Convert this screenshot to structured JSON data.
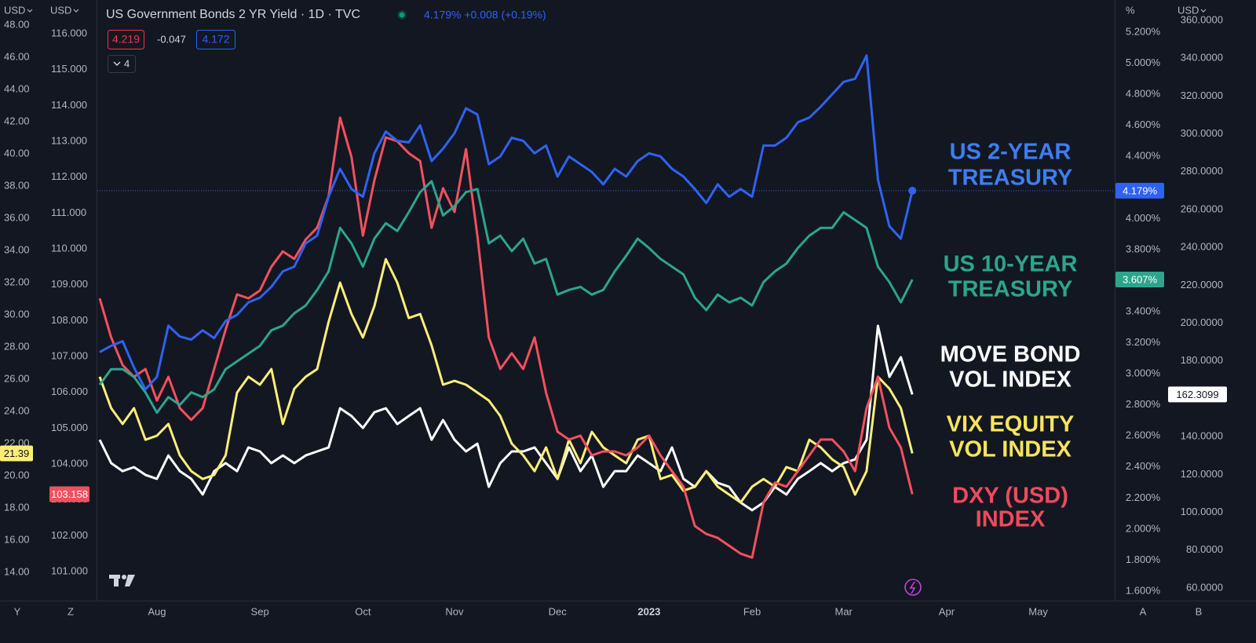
{
  "header": {
    "title": "US Government Bonds 2 YR Yield · 1D · TVC",
    "quote": "4.179% +0.008 (+0.19%)",
    "ohlc": [
      "4.219",
      "-0.047",
      "4.172"
    ],
    "indicator_count": "4"
  },
  "axis_captions": [
    "USD",
    "USD",
    "%",
    "USD"
  ],
  "corner_labels": [
    "Y",
    "Z",
    "A",
    "B"
  ],
  "chart_data": {
    "type": "line",
    "categories": [
      null,
      null,
      null,
      null,
      null,
      "Aug",
      null,
      null,
      null,
      null,
      null,
      null,
      null,
      null,
      "Sep",
      null,
      null,
      null,
      null,
      null,
      null,
      null,
      null,
      "Oct",
      null,
      null,
      null,
      null,
      null,
      null,
      null,
      "Nov",
      null,
      null,
      null,
      null,
      null,
      null,
      null,
      null,
      "Dec",
      null,
      null,
      null,
      null,
      null,
      null,
      null,
      "2023",
      null,
      null,
      null,
      null,
      null,
      null,
      null,
      null,
      "Feb",
      null,
      null,
      null,
      null,
      null,
      null,
      null,
      "Mar",
      null,
      null,
      null,
      null,
      null,
      null,
      null,
      null,
      "Apr",
      null,
      null,
      null,
      null,
      null,
      null,
      null,
      "May"
    ],
    "ylim": [
      1.6,
      5.2
    ],
    "yticks": [
      {
        "value": 1.6,
        "label": "1.600%"
      },
      {
        "value": 1.8,
        "label": "1.800%"
      },
      {
        "value": 2.0,
        "label": "2.000%"
      },
      {
        "value": 2.2,
        "label": "2.200%"
      },
      {
        "value": 2.4,
        "label": "2.400%"
      },
      {
        "value": 2.6,
        "label": "2.600%"
      },
      {
        "value": 2.8,
        "label": "2.800%"
      },
      {
        "value": 3.0,
        "label": "3.000%"
      },
      {
        "value": 3.2,
        "label": "3.200%"
      },
      {
        "value": 3.4,
        "label": "3.400%"
      },
      {
        "value": 3.6,
        "label": "3.600%"
      },
      {
        "value": 3.8,
        "label": "3.800%"
      },
      {
        "value": 4.0,
        "label": "4.000%"
      },
      {
        "value": 4.2,
        "label": "4.200%"
      },
      {
        "value": 4.4,
        "label": "4.400%"
      },
      {
        "value": 4.6,
        "label": "4.600%"
      },
      {
        "value": 4.8,
        "label": "4.800%"
      },
      {
        "value": 5.0,
        "label": "5.000%"
      },
      {
        "value": 5.2,
        "label": "5.200%"
      }
    ],
    "y2lim": [
      60,
      360
    ],
    "y2ticks": [
      {
        "value": 60,
        "label": "60.0000"
      },
      {
        "value": 80,
        "label": "80.0000"
      },
      {
        "value": 100,
        "label": "100.0000"
      },
      {
        "value": 120,
        "label": "120.0000"
      },
      {
        "value": 140,
        "label": "140.0000"
      },
      {
        "value": 160,
        "label": "160.0000"
      },
      {
        "value": 180,
        "label": "180.0000"
      },
      {
        "value": 200,
        "label": "200.0000"
      },
      {
        "value": 220,
        "label": "220.0000"
      },
      {
        "value": 240,
        "label": "240.0000"
      },
      {
        "value": 260,
        "label": "260.0000"
      },
      {
        "value": 280,
        "label": "280.0000"
      },
      {
        "value": 300,
        "label": "300.0000"
      },
      {
        "value": 320,
        "label": "320.0000"
      },
      {
        "value": 340,
        "label": "340.0000"
      },
      {
        "value": 360,
        "label": "360.0000"
      }
    ],
    "y3lim": [
      14,
      48
    ],
    "y3ticks": [
      {
        "value": 14,
        "label": "14.00"
      },
      {
        "value": 16,
        "label": "16.00"
      },
      {
        "value": 18,
        "label": "18.00"
      },
      {
        "value": 20,
        "label": "20.00"
      },
      {
        "value": 22,
        "label": "22.00"
      },
      {
        "value": 24,
        "label": "24.00"
      },
      {
        "value": 26,
        "label": "26.00"
      },
      {
        "value": 28,
        "label": "28.00"
      },
      {
        "value": 30,
        "label": "30.00"
      },
      {
        "value": 32,
        "label": "32.00"
      },
      {
        "value": 34,
        "label": "34.00"
      },
      {
        "value": 36,
        "label": "36.00"
      },
      {
        "value": 38,
        "label": "38.00"
      },
      {
        "value": 40,
        "label": "40.00"
      },
      {
        "value": 42,
        "label": "42.00"
      },
      {
        "value": 44,
        "label": "44.00"
      },
      {
        "value": 46,
        "label": "46.00"
      },
      {
        "value": 48,
        "label": "48.00"
      }
    ],
    "y4lim": [
      101,
      116
    ],
    "y4ticks": [
      {
        "value": 101,
        "label": "101.000"
      },
      {
        "value": 102,
        "label": "102.000"
      },
      {
        "value": 103,
        "label": "103.000"
      },
      {
        "value": 104,
        "label": "104.000"
      },
      {
        "value": 105,
        "label": "105.000"
      },
      {
        "value": 106,
        "label": "106.000"
      },
      {
        "value": 107,
        "label": "107.000"
      },
      {
        "value": 108,
        "label": "108.000"
      },
      {
        "value": 109,
        "label": "109.000"
      },
      {
        "value": 110,
        "label": "110.000"
      },
      {
        "value": 111,
        "label": "111.000"
      },
      {
        "value": 112,
        "label": "112.000"
      },
      {
        "value": 113,
        "label": "113.000"
      },
      {
        "value": 114,
        "label": "114.000"
      },
      {
        "value": 115,
        "label": "115.000"
      },
      {
        "value": 116,
        "label": "116.000"
      }
    ],
    "grid": false,
    "series": [
      {
        "color": "#ffffff",
        "axis": "y2",
        "last_value_label": "162.3099",
        "values": [
          138.4,
          126.0,
          121.8,
          123.9,
          119.8,
          117.7,
          130.1,
          121.8,
          117.7,
          109.4,
          121.8,
          126.0,
          121.8,
          134.3,
          132.2,
          126.0,
          130.1,
          126.0,
          130.1,
          132.2,
          134.3,
          155.0,
          150.9,
          144.6,
          152.9,
          155.0,
          146.7,
          150.9,
          155.0,
          138.4,
          148.8,
          138.4,
          132.2,
          136.3,
          113.5,
          126.0,
          132.2,
          132.2,
          134.3,
          126.0,
          117.7,
          134.3,
          121.8,
          130.1,
          113.5,
          121.8,
          121.8,
          130.1,
          126.0,
          121.8,
          134.3,
          117.7,
          113.5,
          121.8,
          115.6,
          113.5,
          105.2,
          101.1,
          105.2,
          113.5,
          109.4,
          117.7,
          121.8,
          126.0,
          121.8,
          126.0,
          128.0,
          138.4,
          198.6,
          171.6,
          182.0,
          162.3099,
          null,
          null,
          null,
          null,
          null,
          null,
          null,
          null,
          null,
          null,
          null
        ]
      },
      {
        "color": "#fdee78",
        "axis": "y3",
        "last_value_label": "21.39",
        "values": [
          26.15,
          24.2,
          23.22,
          24.2,
          22.24,
          22.49,
          23.22,
          21.27,
          20.29,
          19.8,
          20.05,
          21.27,
          25.17,
          26.15,
          25.66,
          26.63,
          23.22,
          25.41,
          26.15,
          26.63,
          29.56,
          32.0,
          30.05,
          28.59,
          30.54,
          33.46,
          32.0,
          29.8,
          30.05,
          28.1,
          25.66,
          25.9,
          25.66,
          25.17,
          24.68,
          23.71,
          22.0,
          21.27,
          20.29,
          21.76,
          19.8,
          22.24,
          20.78,
          22.73,
          21.76,
          21.27,
          20.78,
          22.24,
          22.49,
          19.8,
          20.05,
          19.07,
          19.32,
          20.29,
          19.32,
          18.83,
          18.34,
          19.32,
          19.8,
          19.32,
          20.54,
          20.29,
          22.24,
          21.76,
          21.02,
          20.54,
          18.83,
          20.29,
          26.15,
          25.41,
          24.2,
          21.39,
          null,
          null,
          null,
          null,
          null,
          null,
          null,
          null,
          null,
          null,
          null
        ]
      },
      {
        "color": "#f4505e",
        "axis": "y4",
        "last_value_label": "103.158",
        "values": [
          108.62,
          107.53,
          106.76,
          106.43,
          106.65,
          105.77,
          106.43,
          105.56,
          105.23,
          105.56,
          106.65,
          107.75,
          108.73,
          108.62,
          108.84,
          109.5,
          109.93,
          109.72,
          110.26,
          110.59,
          111.47,
          113.66,
          112.56,
          110.37,
          111.91,
          113.11,
          113.0,
          112.67,
          112.45,
          110.59,
          111.69,
          111.03,
          112.78,
          110.37,
          107.53,
          106.65,
          107.09,
          106.65,
          107.53,
          105.99,
          104.9,
          104.68,
          104.79,
          104.24,
          104.35,
          104.35,
          104.24,
          104.46,
          104.79,
          104.24,
          103.8,
          103.37,
          102.27,
          102.05,
          101.94,
          101.72,
          101.5,
          101.39,
          102.93,
          103.48,
          103.37,
          103.8,
          104.24,
          104.68,
          104.68,
          104.35,
          103.8,
          105.56,
          106.43,
          105.01,
          104.46,
          103.158,
          null,
          null,
          null,
          null,
          null,
          null,
          null,
          null,
          null,
          null,
          null
        ]
      },
      {
        "color": "#2ca58d",
        "axis": "y",
        "last_value_label": "3.607%",
        "values": [
          2.93,
          3.03,
          3.03,
          2.98,
          2.88,
          2.75,
          2.85,
          2.8,
          2.88,
          2.85,
          2.9,
          3.03,
          3.08,
          3.13,
          3.18,
          3.28,
          3.31,
          3.39,
          3.44,
          3.54,
          3.66,
          3.94,
          3.84,
          3.69,
          3.87,
          3.97,
          3.92,
          4.04,
          4.17,
          4.24,
          4.02,
          4.08,
          4.17,
          4.19,
          3.84,
          3.89,
          3.79,
          3.87,
          3.71,
          3.74,
          3.51,
          3.54,
          3.56,
          3.51,
          3.54,
          3.66,
          3.76,
          3.87,
          3.81,
          3.74,
          3.69,
          3.64,
          3.49,
          3.41,
          3.51,
          3.46,
          3.49,
          3.44,
          3.59,
          3.66,
          3.71,
          3.81,
          3.89,
          3.94,
          3.94,
          4.04,
          3.99,
          3.94,
          3.69,
          3.59,
          3.46,
          3.607,
          null,
          null,
          null,
          null,
          null,
          null,
          null,
          null,
          null,
          null,
          null
        ]
      },
      {
        "color": "#2f62f2",
        "axis": "y",
        "last_value_label": "4.179%",
        "values": [
          3.14,
          3.18,
          3.21,
          3.04,
          2.9,
          2.98,
          3.31,
          3.24,
          3.22,
          3.28,
          3.23,
          3.34,
          3.38,
          3.46,
          3.49,
          3.56,
          3.66,
          3.69,
          3.84,
          3.89,
          4.14,
          4.32,
          4.19,
          4.14,
          4.42,
          4.56,
          4.5,
          4.49,
          4.6,
          4.37,
          4.45,
          4.55,
          4.71,
          4.67,
          4.35,
          4.4,
          4.52,
          4.5,
          4.42,
          4.47,
          4.27,
          4.4,
          4.35,
          4.3,
          4.22,
          4.32,
          4.27,
          4.37,
          4.42,
          4.4,
          4.32,
          4.27,
          4.19,
          4.1,
          4.22,
          4.14,
          4.19,
          4.14,
          4.47,
          4.47,
          4.52,
          4.62,
          4.65,
          4.72,
          4.8,
          4.88,
          4.9,
          5.05,
          4.25,
          3.95,
          3.87,
          4.179,
          null,
          null,
          null,
          null,
          null,
          null,
          null,
          null,
          null,
          null,
          null
        ]
      }
    ],
    "annotations": [
      {
        "lines": [
          "US 2-YEAR",
          "TREASURY"
        ],
        "color": "#3d7ef2"
      },
      {
        "lines": [
          "US 10-YEAR",
          "TREASURY"
        ],
        "color": "#2ca58d"
      },
      {
        "lines": [
          "MOVE BOND",
          "VOL INDEX"
        ],
        "color": "#ffffff"
      },
      {
        "lines": [
          "VIX EQUITY",
          "VOL INDEX"
        ],
        "color": "#f6e45c"
      },
      {
        "lines": [
          "DXY (USD)",
          "INDEX"
        ],
        "color": "#f04a5c"
      }
    ]
  }
}
